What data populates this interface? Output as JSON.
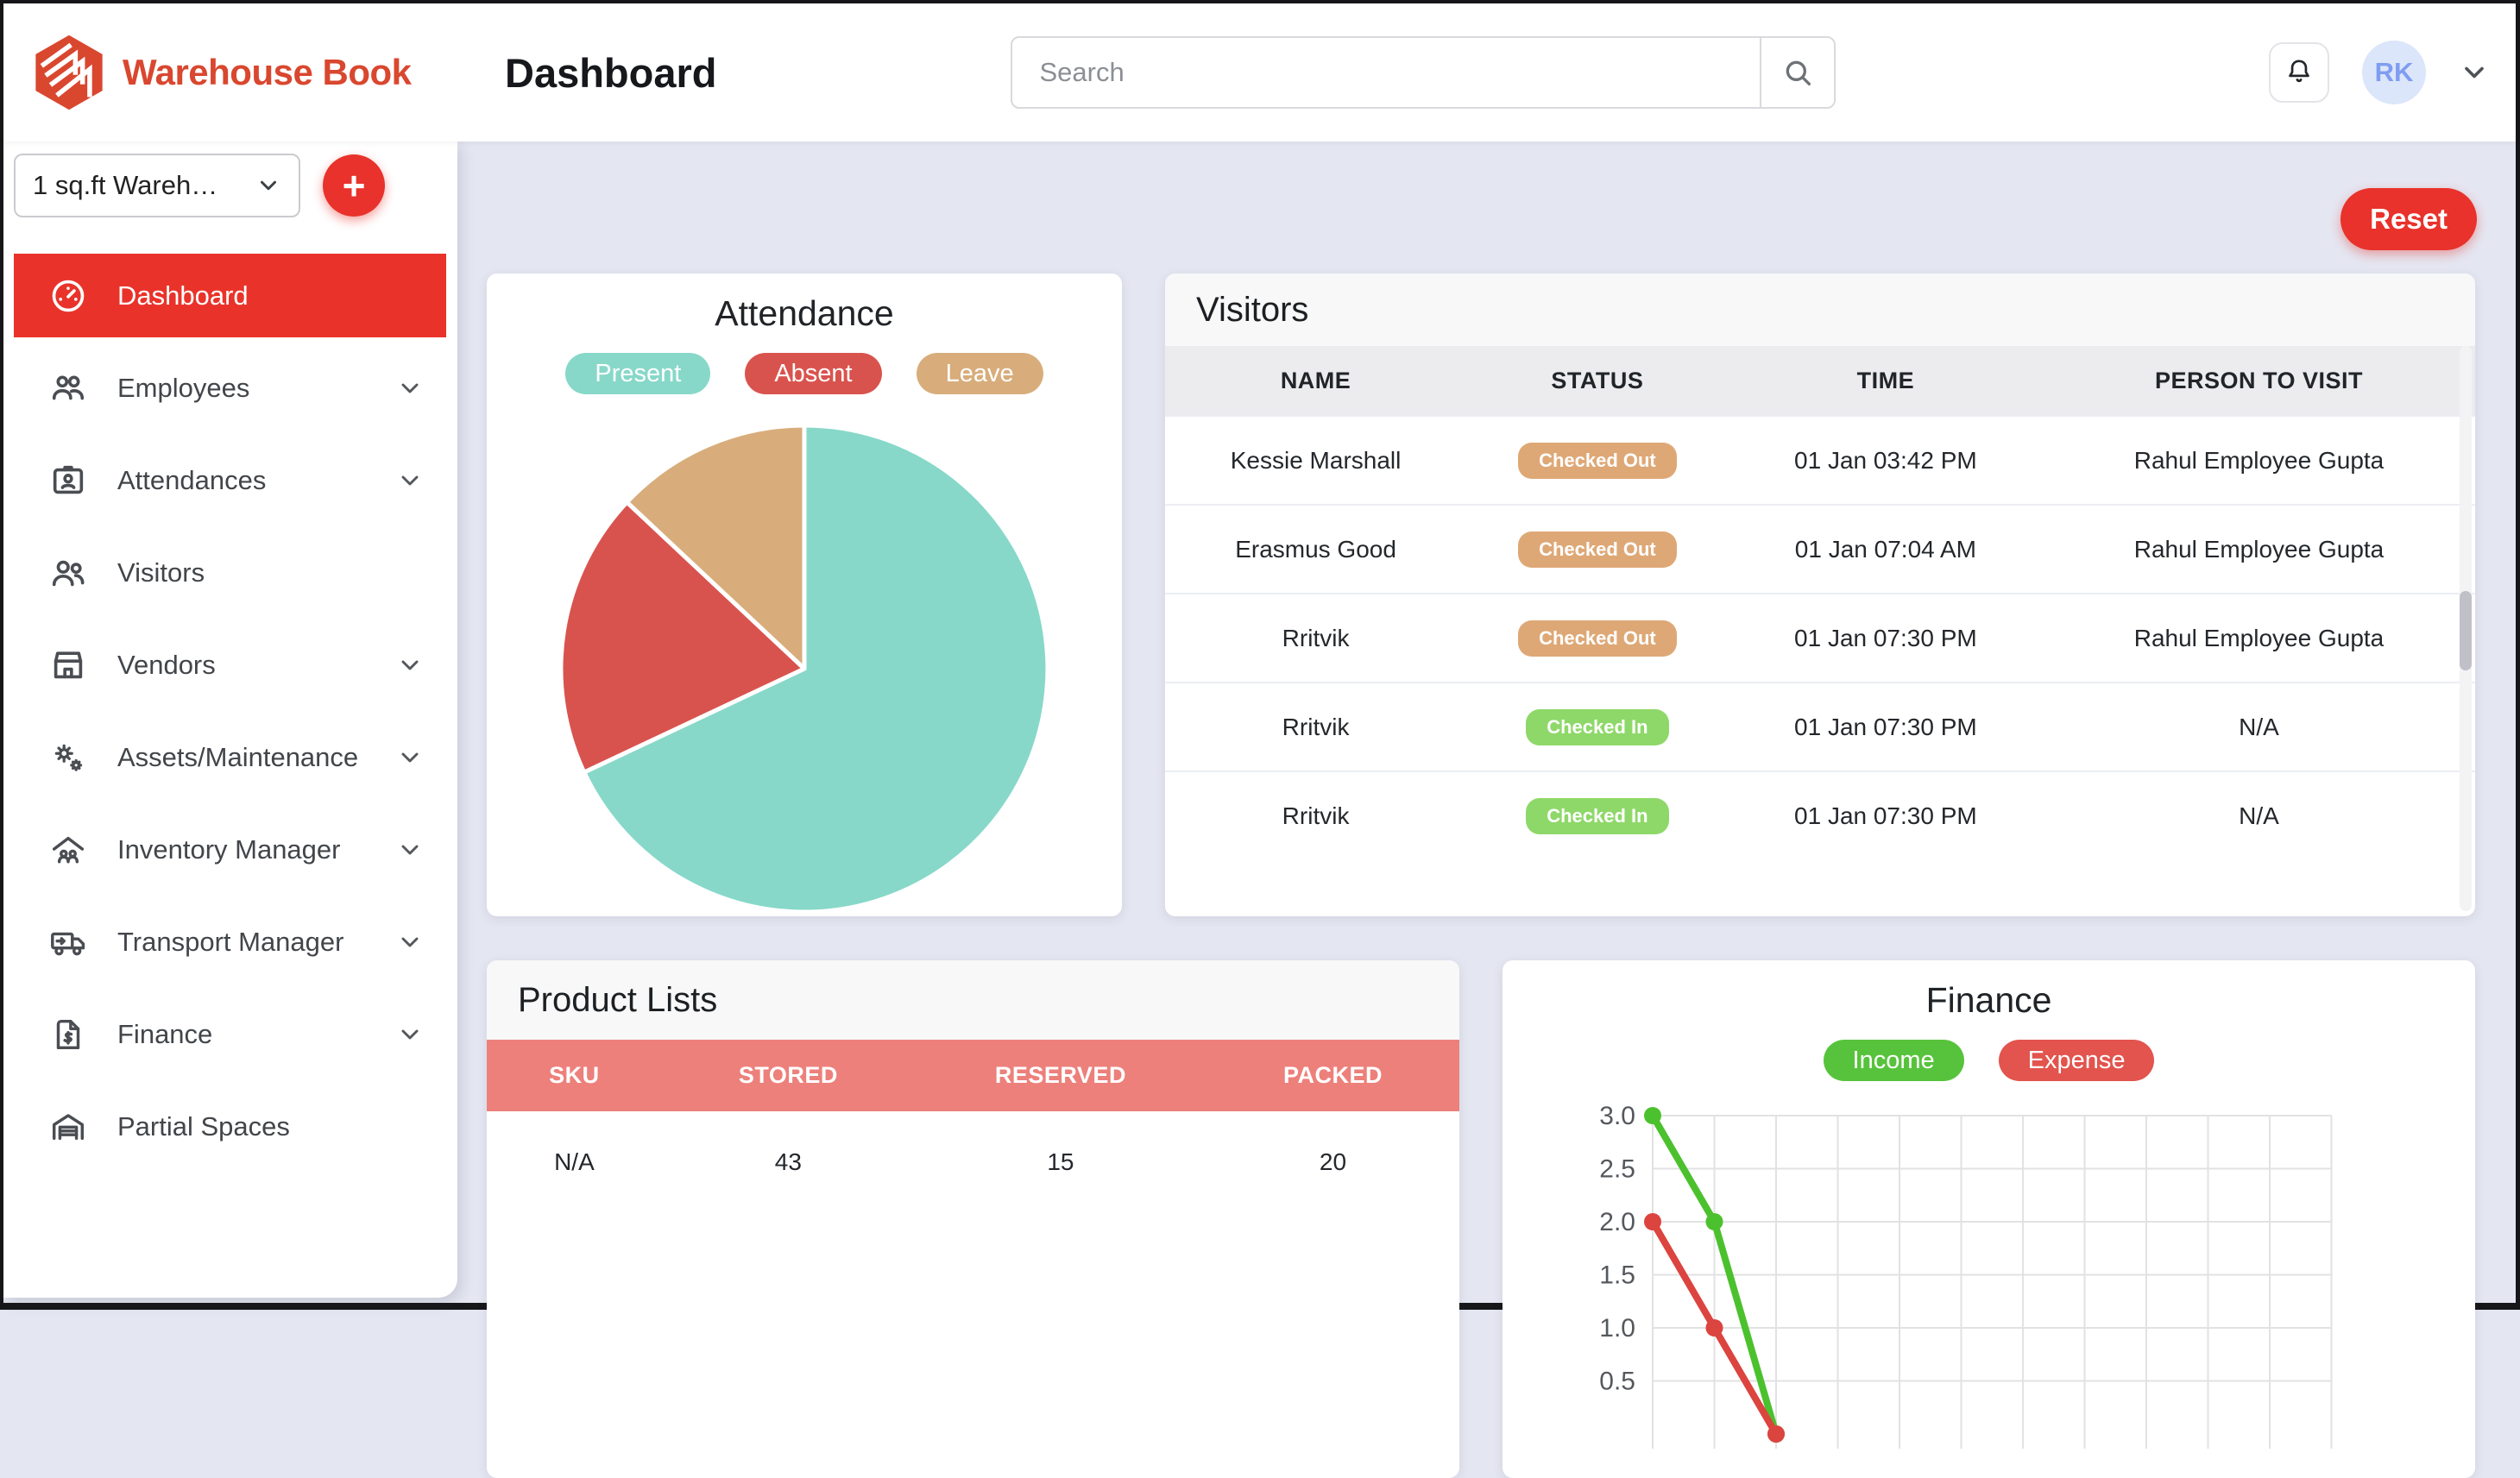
{
  "brand": {
    "name": "Warehouse Book",
    "logo_color": "#d9472f"
  },
  "header": {
    "title": "Dashboard",
    "search_placeholder": "Search",
    "avatar_initials": "RK"
  },
  "sidebar": {
    "warehouse_selector": "1 sq.ft Wareh…",
    "add_button": "+",
    "items": [
      {
        "label": "Dashboard",
        "active": true,
        "chevron": false
      },
      {
        "label": "Employees",
        "active": false,
        "chevron": true
      },
      {
        "label": "Attendances",
        "active": false,
        "chevron": true
      },
      {
        "label": "Visitors",
        "active": false,
        "chevron": false
      },
      {
        "label": "Vendors",
        "active": false,
        "chevron": true
      },
      {
        "label": "Assets/Maintenance",
        "active": false,
        "chevron": true
      },
      {
        "label": "Inventory Manager",
        "active": false,
        "chevron": true
      },
      {
        "label": "Transport Manager",
        "active": false,
        "chevron": true
      },
      {
        "label": "Finance",
        "active": false,
        "chevron": true
      },
      {
        "label": "Partial Spaces",
        "active": false,
        "chevron": false
      }
    ]
  },
  "main": {
    "reset_label": "Reset",
    "background": "#e4e6f1",
    "accent_red": "#e8322b"
  },
  "attendance": {
    "title": "Attendance",
    "legend": [
      {
        "label": "Present",
        "color": "#87d8c9"
      },
      {
        "label": "Absent",
        "color": "#d9534e"
      },
      {
        "label": "Leave",
        "color": "#d8ad7b"
      }
    ]
  },
  "visitors": {
    "title": "Visitors",
    "columns": [
      "NAME",
      "STATUS",
      "TIME",
      "PERSON TO VISIT"
    ],
    "badge_colors": {
      "out": "#dea876",
      "in": "#8ed869"
    },
    "rows": [
      {
        "name": "Kessie Marshall",
        "status": "Checked Out",
        "status_type": "out",
        "time": "01 Jan 03:42 PM",
        "person": "Rahul Employee Gupta"
      },
      {
        "name": "Erasmus Good",
        "status": "Checked Out",
        "status_type": "out",
        "time": "01 Jan 07:04 AM",
        "person": "Rahul Employee Gupta"
      },
      {
        "name": "Rritvik",
        "status": "Checked Out",
        "status_type": "out",
        "time": "01 Jan 07:30 PM",
        "person": "Rahul Employee Gupta"
      },
      {
        "name": "Rritvik",
        "status": "Checked In",
        "status_type": "in",
        "time": "01 Jan 07:30 PM",
        "person": "N/A"
      },
      {
        "name": "Rritvik",
        "status": "Checked In",
        "status_type": "in",
        "time": "01 Jan 07:30 PM",
        "person": "N/A"
      }
    ]
  },
  "products": {
    "title": "Product Lists",
    "header_color": "#ed807b",
    "columns": [
      "SKU",
      "STORED",
      "RESERVED",
      "PACKED"
    ],
    "rows": [
      [
        "N/A",
        "43",
        "15",
        "20"
      ]
    ]
  },
  "finance": {
    "title": "Finance",
    "legend": [
      {
        "label": "Income",
        "color": "#57c33c"
      },
      {
        "label": "Expense",
        "color": "#e2544d"
      }
    ]
  },
  "chart_data": [
    {
      "type": "pie",
      "title": "Attendance",
      "labels": [
        "Present",
        "Absent",
        "Leave"
      ],
      "values": [
        68,
        19,
        13
      ],
      "unit": "percent (estimated from slice angles)",
      "colors": [
        "#87d8c9",
        "#d9534e",
        "#d8ad7b"
      ],
      "start_angle_deg": 0,
      "direction": "clockwise",
      "legend_position": "top"
    },
    {
      "type": "line",
      "title": "Finance",
      "x": [
        0,
        1,
        2
      ],
      "x_labels_visible": false,
      "series": [
        {
          "name": "Income",
          "color": "#4cc12e",
          "values": [
            3,
            2,
            0
          ]
        },
        {
          "name": "Expense",
          "color": "#dc443f",
          "values": [
            2,
            1,
            0
          ]
        }
      ],
      "ylim": [
        0,
        3
      ],
      "y_tick_step": 0.5,
      "y_ticks_visible": [
        3.0,
        2.5,
        2.0,
        1.5
      ],
      "grid": true,
      "legend_position": "top",
      "note": "chart bottom cut off by viewport"
    }
  ]
}
